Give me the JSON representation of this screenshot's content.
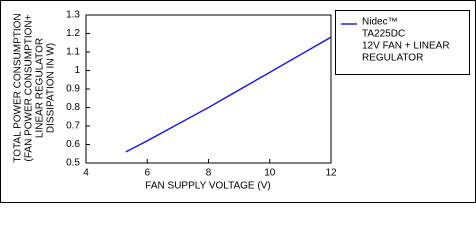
{
  "chart_data": {
    "type": "line",
    "xlabel": "FAN SUPPLY VOLTAGE (V)",
    "ylabel": [
      "TOTAL POWER CONSUMPTION",
      "(FAN POWER CONSUMPTION+",
      "LINEAR REGULATOR",
      "DISSIPATION IN W)"
    ],
    "x": [
      5.3,
      6,
      7,
      8,
      9,
      10,
      11,
      12
    ],
    "series": [
      {
        "name": [
          "Nidec™",
          "TA225DC",
          "12V FAN + LINEAR",
          "REGULATOR"
        ],
        "color": "#2020d8",
        "values": [
          0.56,
          0.62,
          0.71,
          0.8,
          0.895,
          0.99,
          1.085,
          1.18
        ]
      }
    ],
    "xlim": [
      4,
      12
    ],
    "xticks": [
      4,
      6,
      8,
      10,
      12
    ],
    "ylim": [
      0.5,
      1.3
    ],
    "yticks": [
      0.5,
      0.6,
      0.7,
      0.8,
      0.9,
      1,
      1.1,
      1.2,
      1.3
    ],
    "legend": "right"
  }
}
